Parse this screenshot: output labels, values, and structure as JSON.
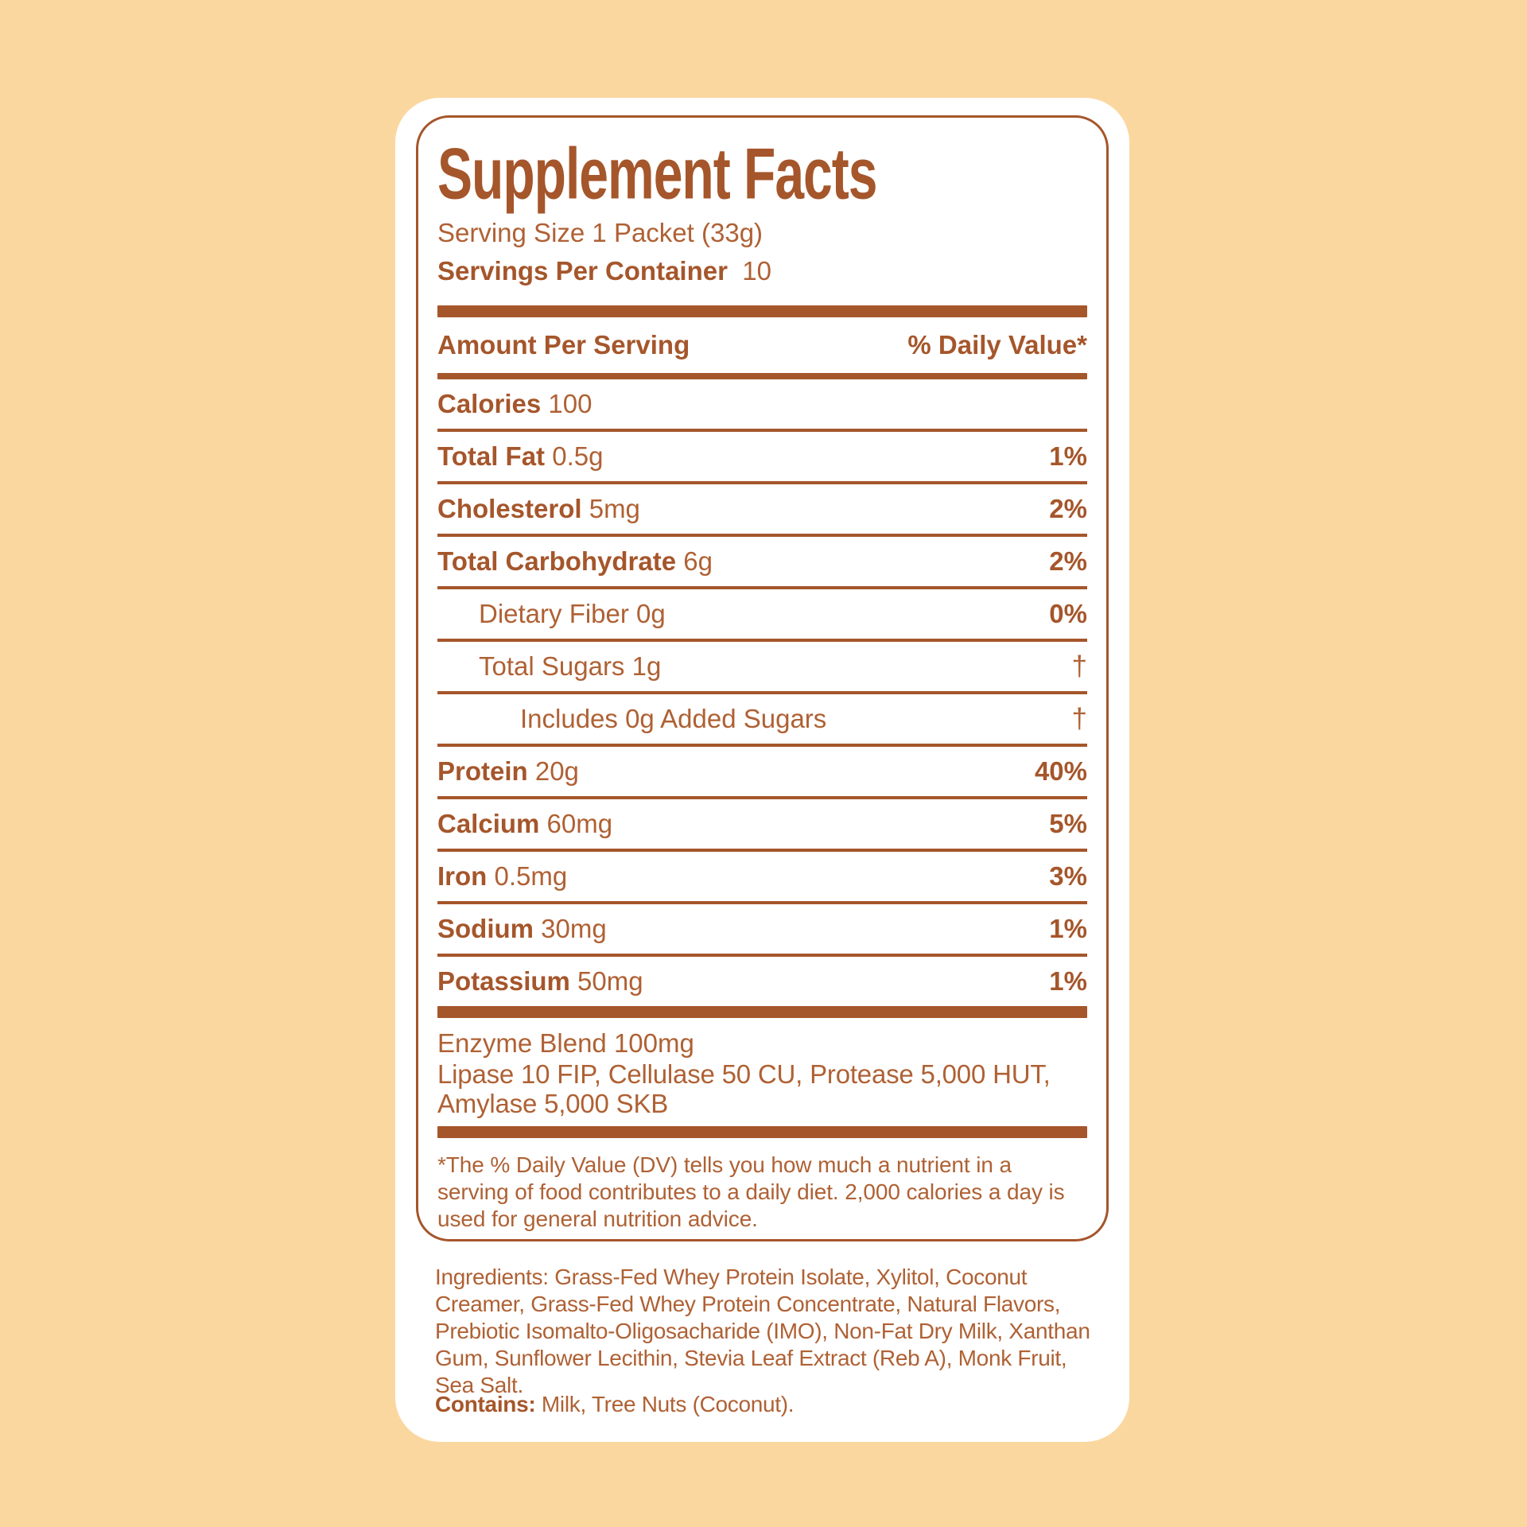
{
  "colors": {
    "background": "#FBD7A0",
    "panel": "#FFFFFF",
    "ink_bold": "#A5562B",
    "ink_regular": "#AF6134"
  },
  "label": {
    "title": "Supplement Facts",
    "serving_size": "Serving Size 1 Packet (33g)",
    "servings_per_container_label": "Servings Per Container",
    "servings_per_container_value": "10",
    "amount_per_serving": "Amount Per Serving",
    "daily_value_header": "% Daily Value*",
    "calories_label": "Calories",
    "calories_value": "100",
    "rows": [
      {
        "name": "Total Fat",
        "amount": "0.5g",
        "dv": "1%",
        "indent": 0,
        "bold": true
      },
      {
        "name": "Cholesterol",
        "amount": "5mg",
        "dv": "2%",
        "indent": 0,
        "bold": true
      },
      {
        "name": "Total Carbohydrate",
        "amount": "6g",
        "dv": "2%",
        "indent": 0,
        "bold": true
      },
      {
        "name": "Dietary Fiber",
        "amount": "0g",
        "dv": "0%",
        "indent": 1,
        "bold": false
      },
      {
        "name": "Total Sugars",
        "amount": "1g",
        "dv": "†",
        "indent": 1,
        "bold": false
      },
      {
        "name": "Includes 0g Added Sugars",
        "amount": "",
        "dv": "†",
        "indent": 2,
        "bold": false
      },
      {
        "name": "Protein",
        "amount": "20g",
        "dv": "40%",
        "indent": 0,
        "bold": true
      },
      {
        "name": "Calcium",
        "amount": "60mg",
        "dv": "5%",
        "indent": 0,
        "bold": true
      },
      {
        "name": "Iron",
        "amount": "0.5mg",
        "dv": "3%",
        "indent": 0,
        "bold": true
      },
      {
        "name": "Sodium",
        "amount": "30mg",
        "dv": "1%",
        "indent": 0,
        "bold": true
      },
      {
        "name": "Potassium",
        "amount": "50mg",
        "dv": "1%",
        "indent": 0,
        "bold": true
      }
    ],
    "enzyme_blend": {
      "title": "Enzyme Blend 100mg",
      "detail": "Lipase 10 FIP, Cellulase 50 CU, Protease 5,000 HUT, Amylase 5,000 SKB"
    },
    "footnote": "*The % Daily Value (DV) tells you how much a nutrient in a serving of food contributes to a daily diet. 2,000 calories a day is used for general nutrition advice.",
    "ingredients": "Ingredients: Grass-Fed Whey Protein Isolate, Xylitol, Coconut Creamer, Grass-Fed Whey Protein Concentrate, Natural Flavors, Prebiotic Isomalto-Oligosacharide (IMO), Non-Fat Dry Milk, Xanthan Gum, Sunflower Lecithin, Stevia Leaf Extract (Reb A), Monk Fruit, Sea Salt.",
    "contains_label": "Contains:",
    "contains_value": " Milk, Tree Nuts (Coconut)."
  }
}
